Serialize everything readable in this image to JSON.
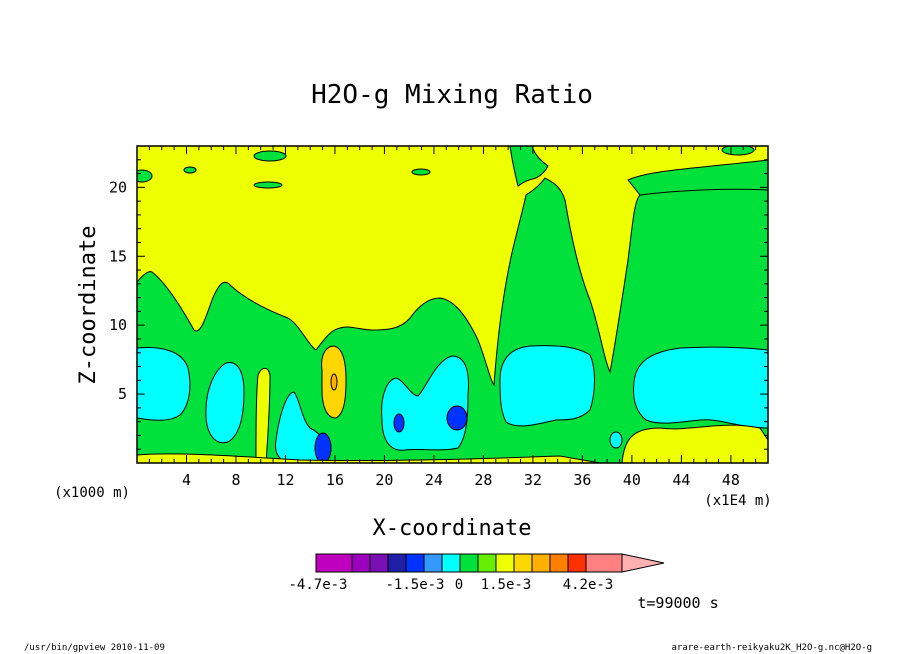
{
  "chart_data": {
    "type": "heatmap",
    "title": "H2O-g Mixing Ratio",
    "xlabel": "X-coordinate",
    "ylabel": "Z-coordinate",
    "x_unit_note": "(x1E4 m)",
    "y_unit_note": "(x1000 m)",
    "xlim": [
      0,
      51
    ],
    "ylim": [
      0,
      23
    ],
    "x_ticks": [
      4,
      8,
      12,
      16,
      20,
      24,
      28,
      32,
      36,
      40,
      44,
      48
    ],
    "y_ticks": [
      5,
      10,
      15,
      20
    ],
    "time_label": "t=99000 s",
    "colorbar": {
      "tick_labels": [
        "-4.7e-3",
        "-1.5e-3",
        "0",
        "1.5e-3",
        "4.2e-3"
      ],
      "colors": [
        "#bf00bf",
        "#9b00bf",
        "#7a10b4",
        "#1f1fa8",
        "#0033ff",
        "#3399ff",
        "#00ffff",
        "#00e13c",
        "#66ee00",
        "#eeff00",
        "#ffd700",
        "#ffb000",
        "#ff8000",
        "#ff3000",
        "#ff8080",
        "#ffb0b0"
      ],
      "extend": "right"
    },
    "contour_levels": [
      "-1.5e-3",
      "-1.0e-3",
      "-5e-4",
      "0",
      "5e-4",
      "1.0e-3",
      "1.5e-3"
    ],
    "regions": [
      {
        "level": "0 to 5e-4",
        "color": "#eeff00",
        "description_area": "upper domain background"
      },
      {
        "level": "-5e-4 to 0",
        "color": "#00e13c",
        "description_area": "low to mid levels and plumes"
      },
      {
        "level": "-1.0e-3 to -5e-4",
        "color": "#00ffff",
        "description_area": "low-level pockets"
      },
      {
        "level": "-1.5e-3 to -1.0e-3",
        "color": "#0033ff",
        "description_area": "small cores"
      },
      {
        "level": "5e-4 to 1.0e-3",
        "color": "#ffd700",
        "description_area": "positive anomaly near x=16"
      }
    ]
  },
  "footer": {
    "left": "/usr/bin/gpview  2010-11-09",
    "right": "arare-earth-reikyaku2K_H2O-g.nc@H2O-g"
  }
}
